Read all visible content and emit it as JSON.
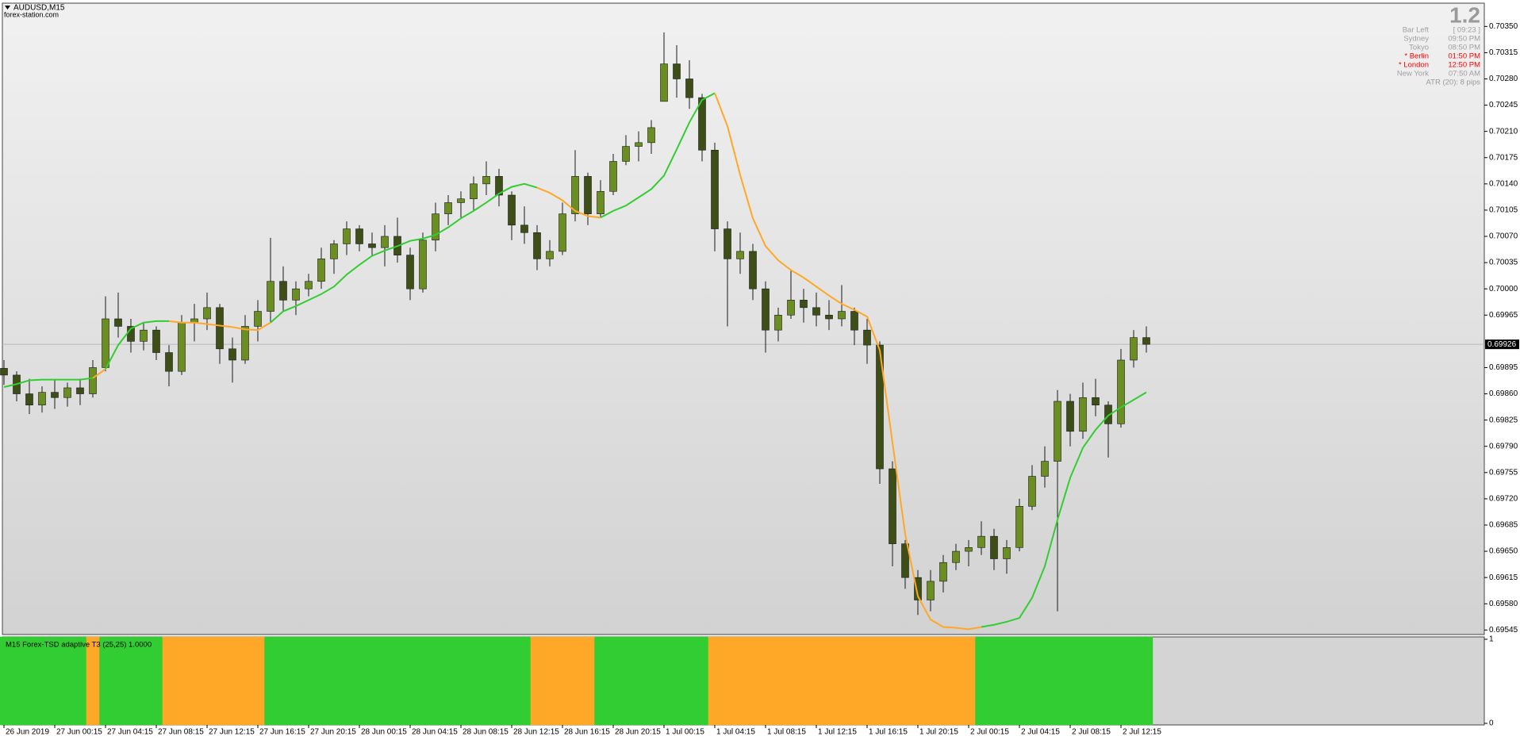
{
  "header": {
    "symbol": "AUDUSD,M15",
    "source": "forex-station.com"
  },
  "info_panel": {
    "version": "1.2",
    "rows": [
      {
        "label": "Bar Left",
        "value": "[ 09:23 ]",
        "color": "#a0a0a0"
      },
      {
        "label": "Sydney",
        "value": "09:50 PM",
        "color": "#a0a0a0"
      },
      {
        "label": "Tokyo",
        "value": "08:50 PM",
        "color": "#a0a0a0"
      },
      {
        "label": "* Berlin",
        "value": "01:50 PM",
        "color": "#ff0000"
      },
      {
        "label": "* London",
        "value": "12:50 PM",
        "color": "#ff0000"
      },
      {
        "label": "New York",
        "value": "07:50 AM",
        "color": "#a0a0a0"
      }
    ],
    "atr": "ATR (20): 8 pips"
  },
  "chart_data": [
    {
      "type": "candlestick",
      "categories": [
        "26 Jun 2019",
        null,
        null,
        null,
        "27 Jun 00:15",
        null,
        null,
        null,
        "27 Jun 04:15",
        null,
        null,
        null,
        "27 Jun 08:15",
        null,
        null,
        null,
        "27 Jun 12:15",
        null,
        null,
        null,
        "27 Jun 16:15",
        null,
        null,
        null,
        "27 Jun 20:15",
        null,
        null,
        null,
        "28 Jun 00:15",
        null,
        null,
        null,
        "28 Jun 04:15",
        null,
        null,
        null,
        "28 Jun 08:15",
        null,
        null,
        null,
        "28 Jun 12:15",
        null,
        null,
        null,
        "28 Jun 16:15",
        null,
        null,
        null,
        "28 Jun 20:15",
        null,
        null,
        null,
        "1 Jul 00:15",
        null,
        null,
        null,
        "1 Jul 04:15",
        null,
        null,
        null,
        "1 Jul 08:15",
        null,
        null,
        null,
        "1 Jul 12:15",
        null,
        null,
        null,
        "1 Jul 16:15",
        null,
        null,
        null,
        "1 Jul 20:15",
        null,
        null,
        null,
        "2 Jul 00:15",
        null,
        null,
        null,
        "2 Jul 04:15",
        null,
        null,
        null,
        "2 Jul 08:15",
        null,
        null,
        null,
        "2 Jul 12:15",
        null,
        null
      ],
      "ohlc": [
        [
          0.69894,
          0.69905,
          0.69872,
          0.69885
        ],
        [
          0.69885,
          0.6989,
          0.6985,
          0.6986
        ],
        [
          0.6986,
          0.6988,
          0.69833,
          0.69845
        ],
        [
          0.69845,
          0.6987,
          0.69835,
          0.69862
        ],
        [
          0.69862,
          0.69878,
          0.6984,
          0.69855
        ],
        [
          0.69855,
          0.69875,
          0.69843,
          0.69868
        ],
        [
          0.69868,
          0.6988,
          0.69845,
          0.6986
        ],
        [
          0.6986,
          0.69905,
          0.69855,
          0.69895
        ],
        [
          0.69895,
          0.6999,
          0.6989,
          0.6996
        ],
        [
          0.6996,
          0.69995,
          0.69935,
          0.6995
        ],
        [
          0.6995,
          0.6996,
          0.69915,
          0.6993
        ],
        [
          0.6993,
          0.69955,
          0.69918,
          0.69945
        ],
        [
          0.69945,
          0.6995,
          0.69905,
          0.69915
        ],
        [
          0.69915,
          0.69925,
          0.6987,
          0.6989
        ],
        [
          0.6989,
          0.69965,
          0.69885,
          0.69955
        ],
        [
          0.69955,
          0.6998,
          0.6993,
          0.6996
        ],
        [
          0.6996,
          0.69995,
          0.69945,
          0.69975
        ],
        [
          0.69975,
          0.6998,
          0.699,
          0.6992
        ],
        [
          0.6992,
          0.69935,
          0.69875,
          0.69905
        ],
        [
          0.69905,
          0.69965,
          0.699,
          0.6995
        ],
        [
          0.6995,
          0.69985,
          0.6993,
          0.6997
        ],
        [
          0.6997,
          0.70068,
          0.69955,
          0.7001
        ],
        [
          0.7001,
          0.7003,
          0.6997,
          0.69985
        ],
        [
          0.69985,
          0.7001,
          0.69965,
          0.7
        ],
        [
          0.7,
          0.7002,
          0.6999,
          0.7001
        ],
        [
          0.7001,
          0.70055,
          0.7,
          0.7004
        ],
        [
          0.7004,
          0.70065,
          0.7002,
          0.7006
        ],
        [
          0.7006,
          0.7009,
          0.70045,
          0.7008
        ],
        [
          0.7008,
          0.70085,
          0.7005,
          0.7006
        ],
        [
          0.7006,
          0.70075,
          0.70045,
          0.70055
        ],
        [
          0.70055,
          0.70085,
          0.7003,
          0.7007
        ],
        [
          0.7007,
          0.70095,
          0.70035,
          0.70045
        ],
        [
          0.70045,
          0.70055,
          0.69985,
          0.7
        ],
        [
          0.7,
          0.70075,
          0.69995,
          0.70065
        ],
        [
          0.70065,
          0.70115,
          0.7005,
          0.701
        ],
        [
          0.701,
          0.70125,
          0.70085,
          0.70115
        ],
        [
          0.70115,
          0.7013,
          0.70095,
          0.7012
        ],
        [
          0.7012,
          0.7015,
          0.70105,
          0.7014
        ],
        [
          0.7014,
          0.7017,
          0.70125,
          0.7015
        ],
        [
          0.7015,
          0.7016,
          0.7011,
          0.70125
        ],
        [
          0.70125,
          0.7013,
          0.70065,
          0.70085
        ],
        [
          0.70085,
          0.7011,
          0.7006,
          0.70075
        ],
        [
          0.70075,
          0.70085,
          0.70025,
          0.7004
        ],
        [
          0.7004,
          0.70065,
          0.7003,
          0.7005
        ],
        [
          0.7005,
          0.70115,
          0.70045,
          0.701
        ],
        [
          0.701,
          0.70185,
          0.7009,
          0.7015
        ],
        [
          0.7015,
          0.70155,
          0.70085,
          0.701
        ],
        [
          0.701,
          0.70145,
          0.70095,
          0.7013
        ],
        [
          0.7013,
          0.7018,
          0.70125,
          0.7017
        ],
        [
          0.7017,
          0.70205,
          0.70165,
          0.7019
        ],
        [
          0.7019,
          0.7021,
          0.7017,
          0.70195
        ],
        [
          0.70195,
          0.70225,
          0.7018,
          0.70215
        ],
        [
          0.7025,
          0.70342,
          0.7025,
          0.703
        ],
        [
          0.703,
          0.70325,
          0.70255,
          0.7028
        ],
        [
          0.7028,
          0.70305,
          0.7024,
          0.70255
        ],
        [
          0.70255,
          0.7026,
          0.7017,
          0.70185
        ],
        [
          0.70185,
          0.70195,
          0.7005,
          0.7008
        ],
        [
          0.7008,
          0.7009,
          0.6995,
          0.7004
        ],
        [
          0.7004,
          0.70075,
          0.7002,
          0.7005
        ],
        [
          0.7005,
          0.7006,
          0.69985,
          0.7
        ],
        [
          0.7,
          0.7001,
          0.69915,
          0.69945
        ],
        [
          0.69945,
          0.69975,
          0.6993,
          0.69965
        ],
        [
          0.69965,
          0.70025,
          0.6996,
          0.69985
        ],
        [
          0.69985,
          0.7,
          0.69955,
          0.69975
        ],
        [
          0.69975,
          0.69995,
          0.6995,
          0.69965
        ],
        [
          0.69965,
          0.69985,
          0.69945,
          0.6996
        ],
        [
          0.6996,
          0.70005,
          0.6995,
          0.6997
        ],
        [
          0.6997,
          0.69975,
          0.69925,
          0.69945
        ],
        [
          0.69945,
          0.6996,
          0.699,
          0.69925
        ],
        [
          0.69925,
          0.6993,
          0.6974,
          0.6976
        ],
        [
          0.6976,
          0.6977,
          0.6963,
          0.6966
        ],
        [
          0.6966,
          0.69665,
          0.696,
          0.69615
        ],
        [
          0.69615,
          0.69625,
          0.69565,
          0.69585
        ],
        [
          0.69585,
          0.69625,
          0.6957,
          0.6961
        ],
        [
          0.6961,
          0.69645,
          0.69595,
          0.69635
        ],
        [
          0.69635,
          0.6966,
          0.69625,
          0.6965
        ],
        [
          0.6965,
          0.69665,
          0.6963,
          0.69655
        ],
        [
          0.69655,
          0.6969,
          0.69645,
          0.6967
        ],
        [
          0.6967,
          0.6968,
          0.69625,
          0.6964
        ],
        [
          0.6964,
          0.69665,
          0.6962,
          0.69655
        ],
        [
          0.69655,
          0.6972,
          0.6965,
          0.6971
        ],
        [
          0.6971,
          0.69765,
          0.69705,
          0.6975
        ],
        [
          0.6975,
          0.6979,
          0.69735,
          0.6977
        ],
        [
          0.6977,
          0.69865,
          0.6957,
          0.6985
        ],
        [
          0.6985,
          0.6986,
          0.6979,
          0.6981
        ],
        [
          0.6981,
          0.69875,
          0.698,
          0.69855
        ],
        [
          0.69855,
          0.6988,
          0.6983,
          0.69845
        ],
        [
          0.69845,
          0.6985,
          0.69775,
          0.6982
        ],
        [
          0.6982,
          0.6992,
          0.69815,
          0.69905
        ],
        [
          0.69905,
          0.69945,
          0.69895,
          0.69935
        ],
        [
          0.69935,
          0.6995,
          0.69915,
          0.69926
        ]
      ],
      "up_color": "#6b8e23",
      "down_color": "#3d4f16",
      "wick_color": "#1a1a1a",
      "t3": [
        0.69869,
        0.69873,
        0.69878,
        0.69879,
        0.69879,
        0.69879,
        0.69879,
        0.69881,
        0.69893,
        0.69925,
        0.69947,
        0.69955,
        0.69957,
        0.69957,
        0.69955,
        0.69955,
        0.69953,
        0.69951,
        0.69949,
        0.69946,
        0.69945,
        0.69955,
        0.6997,
        0.69977,
        0.69985,
        0.69993,
        0.70003,
        0.70019,
        0.70032,
        0.70044,
        0.70051,
        0.70057,
        0.70064,
        0.70067,
        0.70072,
        0.70082,
        0.70094,
        0.70104,
        0.70115,
        0.70127,
        0.70136,
        0.7014,
        0.70135,
        0.70128,
        0.70118,
        0.70104,
        0.70097,
        0.70095,
        0.70104,
        0.70111,
        0.70122,
        0.70133,
        0.70151,
        0.70186,
        0.70222,
        0.70252,
        0.70261,
        0.70217,
        0.70152,
        0.70094,
        0.70057,
        0.70038,
        0.70025,
        0.70015,
        0.70003,
        0.69991,
        0.6998,
        0.69972,
        0.69963,
        0.69918,
        0.69795,
        0.69673,
        0.6959,
        0.69559,
        0.69549,
        0.69548,
        0.69546,
        0.69549,
        0.69552,
        0.69556,
        0.69561,
        0.69588,
        0.6963,
        0.69692,
        0.69748,
        0.69788,
        0.69812,
        0.69831,
        0.69842,
        0.69852,
        0.69862
      ],
      "bid": 0.69926,
      "ylim": [
        0.69539,
        0.70381
      ],
      "yticks": [
        {
          "value": 0.7035,
          "label": "0.70350"
        },
        0.70315,
        {
          "value": 0.7028,
          "label": "0.70280"
        },
        0.70245,
        {
          "value": 0.7021,
          "label": "0.70210"
        },
        0.70175,
        {
          "value": 0.7014,
          "label": "0.70140"
        },
        0.70105,
        {
          "value": 0.7007,
          "label": "0.70070"
        },
        0.70035,
        {
          "value": 0.7,
          "label": "0.70000"
        },
        0.69965,
        0.69895,
        {
          "value": 0.6986,
          "label": "0.69860"
        },
        0.69825,
        {
          "value": 0.6979,
          "label": "0.69790"
        },
        0.69755,
        {
          "value": 0.6972,
          "label": "0.69720"
        },
        0.69685,
        {
          "value": 0.6965,
          "label": "0.69650"
        },
        0.69615,
        {
          "value": 0.6958,
          "label": "0.69580"
        },
        0.69545
      ]
    },
    {
      "type": "bar",
      "title": "M15 Forex-TSD adaptive T3 (25,25) 1.0000",
      "series": [
        {
          "color": "#32cd32",
          "values": [
            1,
            1,
            1,
            1,
            1,
            1,
            1,
            null,
            1,
            1,
            1,
            1,
            1,
            null,
            null,
            null,
            null,
            null,
            null,
            null,
            null,
            1,
            1,
            1,
            1,
            1,
            1,
            1,
            1,
            1,
            1,
            1,
            1,
            1,
            1,
            1,
            1,
            1,
            1,
            1,
            1,
            1,
            null,
            null,
            null,
            null,
            null,
            1,
            1,
            1,
            1,
            1,
            1,
            1,
            1,
            1,
            null,
            null,
            null,
            null,
            null,
            null,
            null,
            null,
            null,
            null,
            null,
            null,
            null,
            null,
            null,
            null,
            null,
            null,
            null,
            null,
            null,
            1,
            1,
            1,
            1,
            1,
            1,
            1,
            1,
            1,
            1,
            1,
            1,
            1,
            1
          ]
        },
        {
          "color": "#ffa726",
          "values": [
            null,
            null,
            null,
            null,
            null,
            null,
            null,
            1,
            null,
            null,
            null,
            null,
            null,
            1,
            1,
            1,
            1,
            1,
            1,
            1,
            1,
            null,
            null,
            null,
            null,
            null,
            null,
            null,
            null,
            null,
            null,
            null,
            null,
            null,
            null,
            null,
            null,
            null,
            null,
            null,
            null,
            null,
            1,
            1,
            1,
            1,
            1,
            null,
            null,
            null,
            null,
            null,
            null,
            null,
            null,
            null,
            1,
            1,
            1,
            1,
            1,
            1,
            1,
            1,
            1,
            1,
            1,
            1,
            1,
            1,
            1,
            1,
            1,
            1,
            1,
            1,
            1,
            null,
            null,
            null,
            null,
            null,
            null,
            null,
            null,
            null,
            null,
            null,
            null,
            null,
            null
          ]
        }
      ],
      "ylim": [
        0,
        1
      ],
      "yticks": [
        1,
        0
      ]
    }
  ]
}
